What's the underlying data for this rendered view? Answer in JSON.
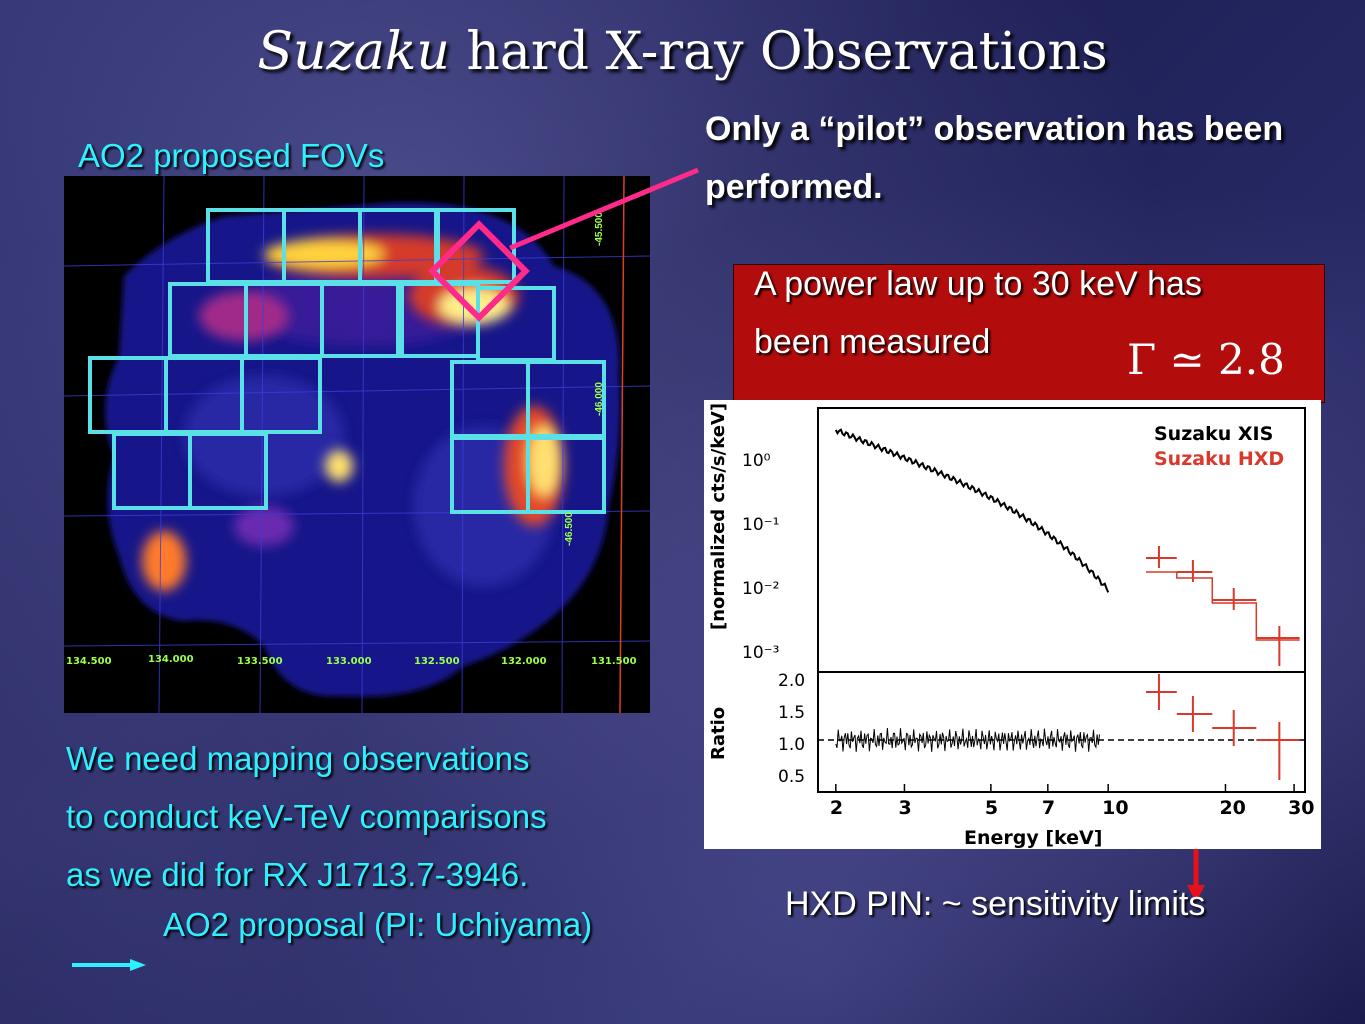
{
  "title": {
    "italic": "Suzaku",
    "rest": " hard X-ray Observations"
  },
  "fov_label": "AO2 proposed FOVs",
  "pilot_text": [
    "Only a “pilot” observation has been",
    "performed."
  ],
  "powerlaw": {
    "lines": [
      "A power law up to 30 keV has",
      "been measured"
    ],
    "formula": "Γ ≃ 2.8"
  },
  "map": {
    "ra_ticks": [
      "134.500",
      "134.000",
      "133.500",
      "133.000",
      "132.500",
      "132.000",
      "131.500"
    ],
    "dec_ticks": [
      "-45.500",
      "-46.000",
      "-46.500"
    ]
  },
  "plot": {
    "legend": [
      "Suzaku XIS",
      "Suzaku HXD"
    ],
    "ylabel_top": "[normalized cts/s/keV]",
    "ylabel_bottom": "Ratio",
    "yticks_top": [
      "10⁰",
      "10⁻¹",
      "10⁻²",
      "10⁻³"
    ],
    "yticks_bottom": [
      "2.0",
      "1.5",
      "1.0",
      "0.5"
    ],
    "xticks": [
      "2",
      "3",
      "5",
      "7",
      "10",
      "20",
      "30"
    ],
    "xlabel": "Energy [keV]",
    "colors": {
      "xis": "#000000",
      "hxd": "#d8392b"
    }
  },
  "bottom_lines": [
    "We need mapping observations",
    "to conduct keV-TeV comparisons",
    "as we did for RX J1713.7-3946."
  ],
  "proposal": "AO2 proposal (PI: Uchiyama)",
  "hxd_note": "HXD PIN:  ~ sensitivity limits"
}
